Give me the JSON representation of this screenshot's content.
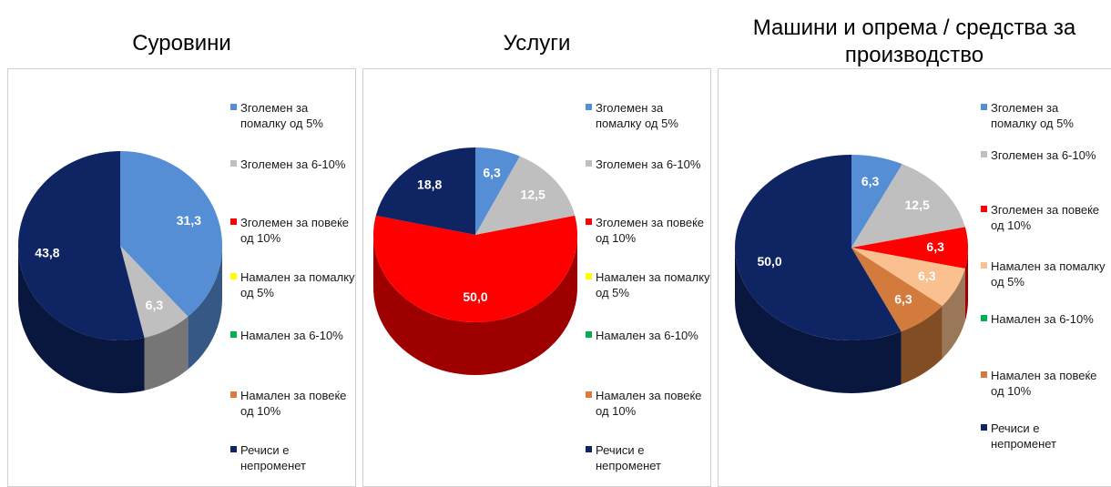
{
  "chart_data": [
    {
      "type": "pie",
      "title": "Суровини",
      "categories": [
        "Зголемен за помалку од 5%",
        "Зголемен за 6-10%",
        "Зголемен за повеќе од 10%",
        "Намален за помалку од 5%",
        "Намален за 6-10%",
        "Намален за повеќе од 10%",
        "Речиси е непроменет"
      ],
      "values": [
        31.3,
        6.3,
        0,
        0,
        0,
        0,
        43.8
      ],
      "value_labels": [
        "31,3",
        "6,3",
        null,
        null,
        null,
        null,
        "43,8"
      ],
      "colors": [
        "#558ed5",
        "#bfbfbf",
        "#ff0000",
        "#ffff00",
        "#00b050",
        "#e07a3a",
        "#0f2463"
      ]
    },
    {
      "type": "pie",
      "title": "Услуги",
      "categories": [
        "Зголемен за помалку од 5%",
        "Зголемен за 6-10%",
        "Зголемен за повеќе од 10%",
        "Намален за помалку од 5%",
        "Намален за 6-10%",
        "Намален за повеќе од 10%",
        "Речиси е непроменет"
      ],
      "values": [
        6.3,
        12.5,
        50.0,
        0,
        0,
        0,
        18.8
      ],
      "value_labels": [
        "6,3",
        "12,5",
        "50,0",
        null,
        null,
        null,
        "18,8"
      ],
      "colors": [
        "#558ed5",
        "#bfbfbf",
        "#ff0000",
        "#ffff00",
        "#00b050",
        "#e07a3a",
        "#0f2463"
      ]
    },
    {
      "type": "pie",
      "title": "Машини и опрема / средства за производство",
      "categories": [
        "Зголемен за помалку од 5%",
        "Зголемен за 6-10%",
        "Зголемен за повеќе од 10%",
        "Намален за помалку од 5%",
        "Намален за 6-10%",
        "Намален за повеќе од 10%",
        "Речиси е непроменет"
      ],
      "values": [
        6.3,
        12.5,
        6.3,
        6.3,
        0,
        6.3,
        50.0
      ],
      "value_labels": [
        "6,3",
        "12,5",
        "6,3",
        "6,3",
        null,
        "6,3",
        "50,0"
      ],
      "colors": [
        "#558ed5",
        "#bfbfbf",
        "#ff0000",
        "#fac090",
        "#00b050",
        "#d27b3c",
        "#0f2463"
      ]
    }
  ]
}
